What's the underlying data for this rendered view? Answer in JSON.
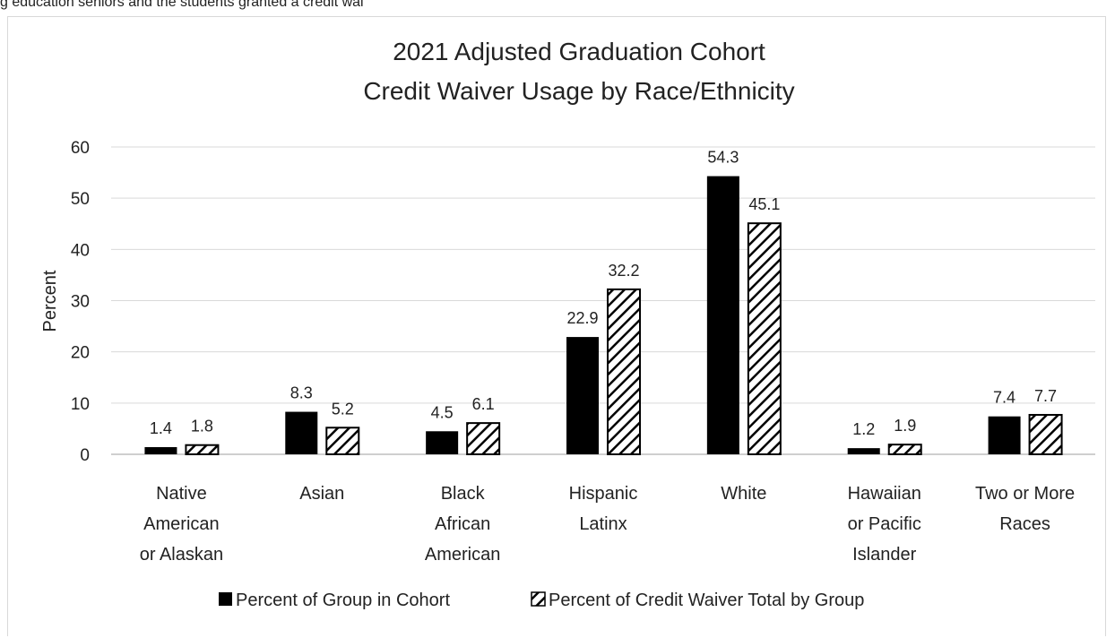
{
  "page": {
    "top_caption": "g education seniors and the students granted a credit wai"
  },
  "chart_data": {
    "type": "bar",
    "title": [
      "2021 Adjusted Graduation Cohort",
      "Credit Waiver Usage by Race/Ethnicity"
    ],
    "ylabel": "Percent",
    "xlabel": "",
    "ylim": [
      0,
      60
    ],
    "yticks": [
      0,
      10,
      20,
      30,
      40,
      50,
      60
    ],
    "grid": true,
    "legend_placement": "bottom",
    "categories": [
      [
        "Native",
        "American",
        "or Alaskan"
      ],
      [
        "Asian"
      ],
      [
        "Black",
        "African",
        "American"
      ],
      [
        "Hispanic",
        "Latinx"
      ],
      [
        "White"
      ],
      [
        "Hawaiian",
        "or Pacific",
        "Islander"
      ],
      [
        "Two or More",
        "Races"
      ]
    ],
    "series": [
      {
        "name": "Percent of Group in Cohort",
        "fill": "solid",
        "color": "#000000",
        "values": [
          1.4,
          8.3,
          4.5,
          22.9,
          54.3,
          1.2,
          7.4
        ]
      },
      {
        "name": "Percent of Credit Waiver Total by Group",
        "fill": "hatched",
        "color": "#000000",
        "values": [
          1.8,
          5.2,
          6.1,
          32.2,
          45.1,
          1.9,
          7.7
        ]
      }
    ]
  }
}
